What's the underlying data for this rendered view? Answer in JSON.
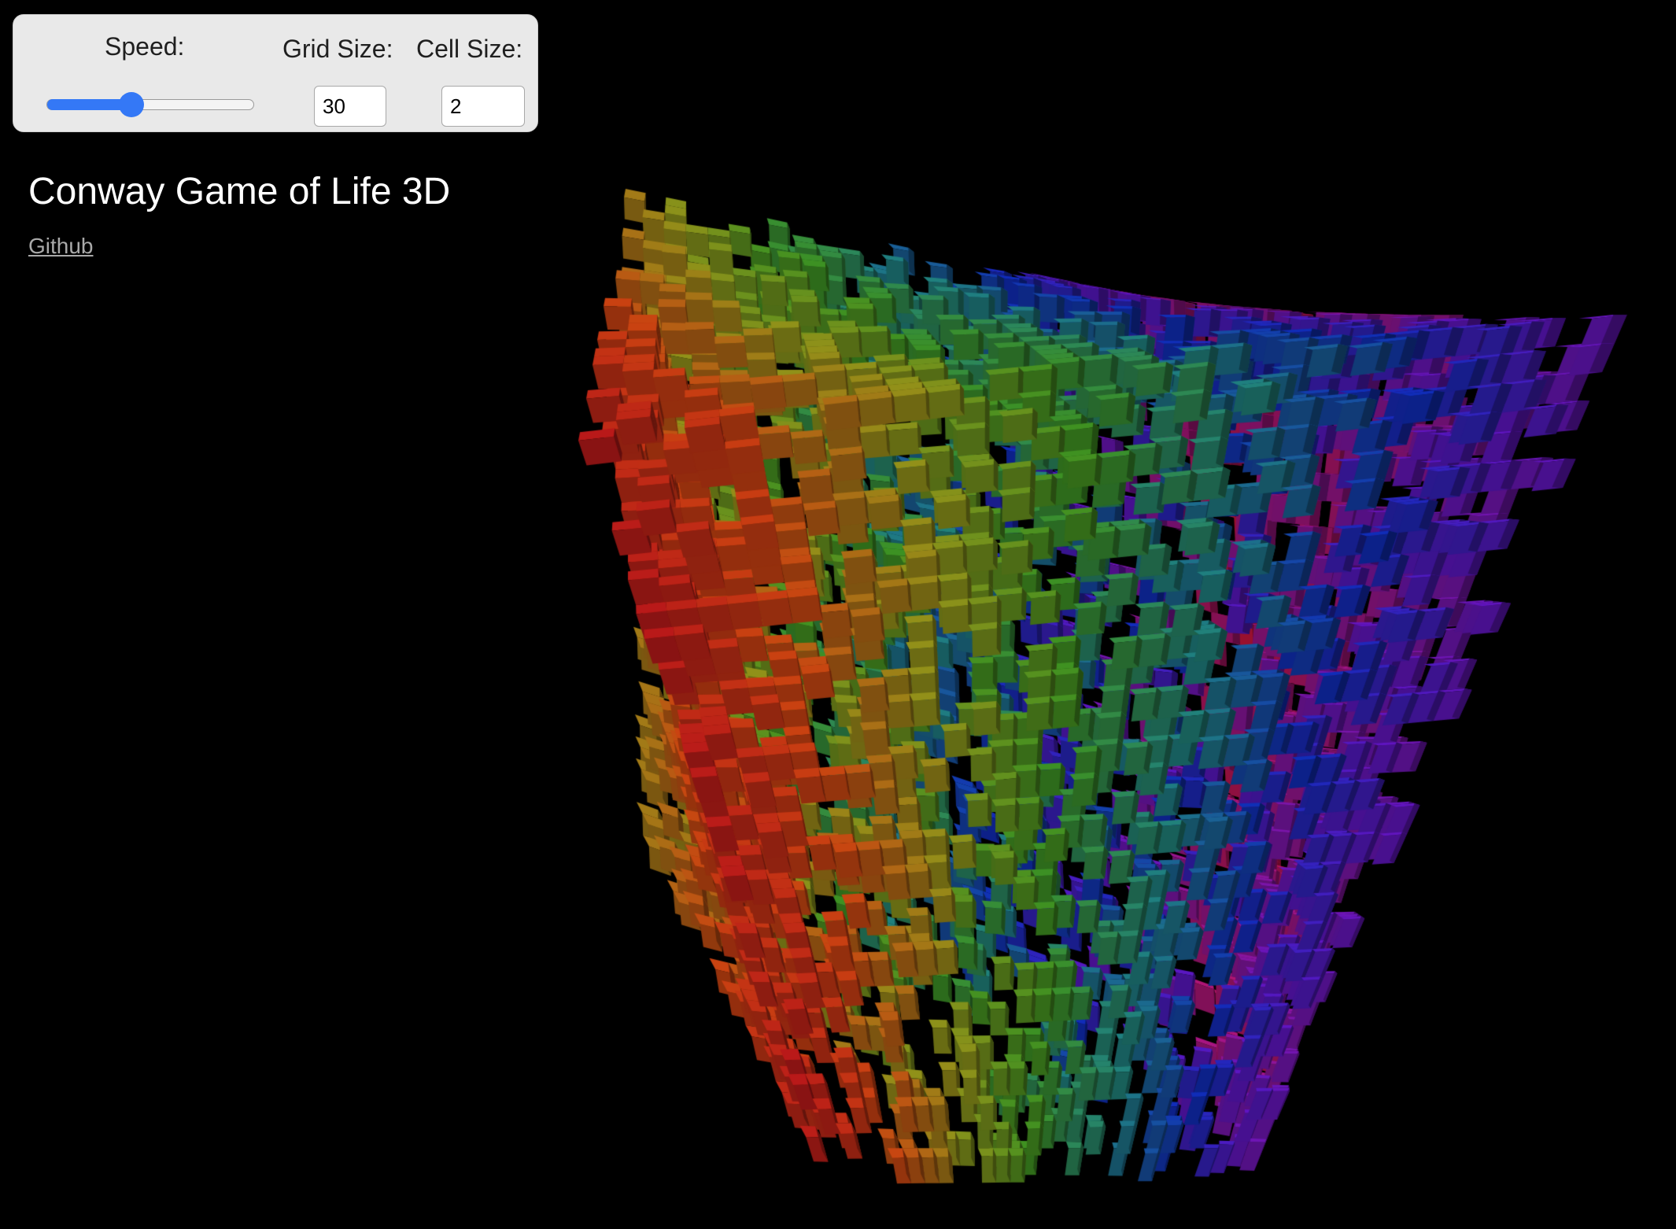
{
  "controls": {
    "speed_label": "Speed:",
    "speed_value": 0.41,
    "speed_accent": "#3478f6",
    "grid_label": "Grid Size:",
    "grid_value": "30",
    "cell_label": "Cell Size:",
    "cell_value": "2"
  },
  "page": {
    "title": "Conway Game of Life 3D",
    "github_label": "Github"
  },
  "scene": {
    "background": "#000000",
    "description_icon": "cube-voxel-grid",
    "color_gradient": [
      "#b01818",
      "#c04010",
      "#8a8a18",
      "#3a8a20",
      "#1e7a78",
      "#0f2ab0",
      "#5a14b8",
      "#a0147a",
      "#d01424"
    ]
  }
}
